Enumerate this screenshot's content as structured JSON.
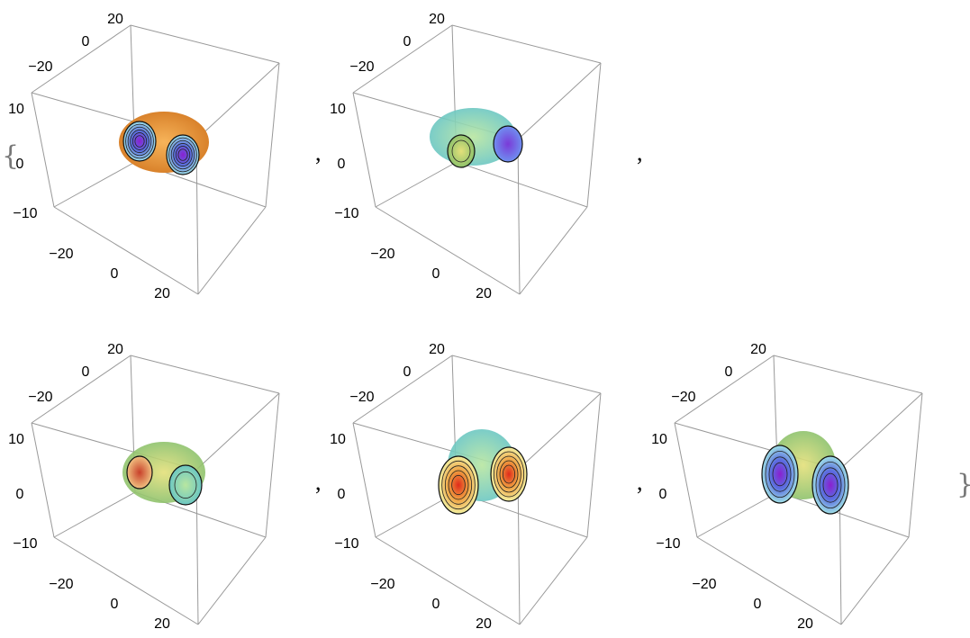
{
  "punctuation": {
    "open": "{",
    "close": "}",
    "separators": [
      ",",
      ",",
      ",",
      ","
    ]
  },
  "plots": [
    {
      "axes": {
        "top": [
          "20",
          "0",
          "−20"
        ],
        "vertical": [
          "10",
          "0",
          "−10"
        ],
        "bottom": [
          "−20",
          "0",
          "20"
        ]
      }
    },
    {
      "axes": {
        "top": [
          "20",
          "0",
          "−20"
        ],
        "vertical": [
          "10",
          "0",
          "−10"
        ],
        "bottom": [
          "−20",
          "0",
          "20"
        ]
      }
    },
    {
      "axes": {
        "top": [
          "20",
          "0",
          "−20"
        ],
        "vertical": [
          "10",
          "0",
          "−10"
        ],
        "bottom": [
          "−20",
          "0",
          "20"
        ]
      }
    },
    {
      "axes": {
        "top": [
          "20",
          "0",
          "−20"
        ],
        "vertical": [
          "10",
          "0",
          "−10"
        ],
        "bottom": [
          "−20",
          "0",
          "20"
        ]
      }
    },
    {
      "axes": {
        "top": [
          "20",
          "0",
          "−20"
        ],
        "vertical": [
          "10",
          "0",
          "−10"
        ],
        "bottom": [
          "−20",
          "0",
          "20"
        ]
      }
    }
  ]
}
